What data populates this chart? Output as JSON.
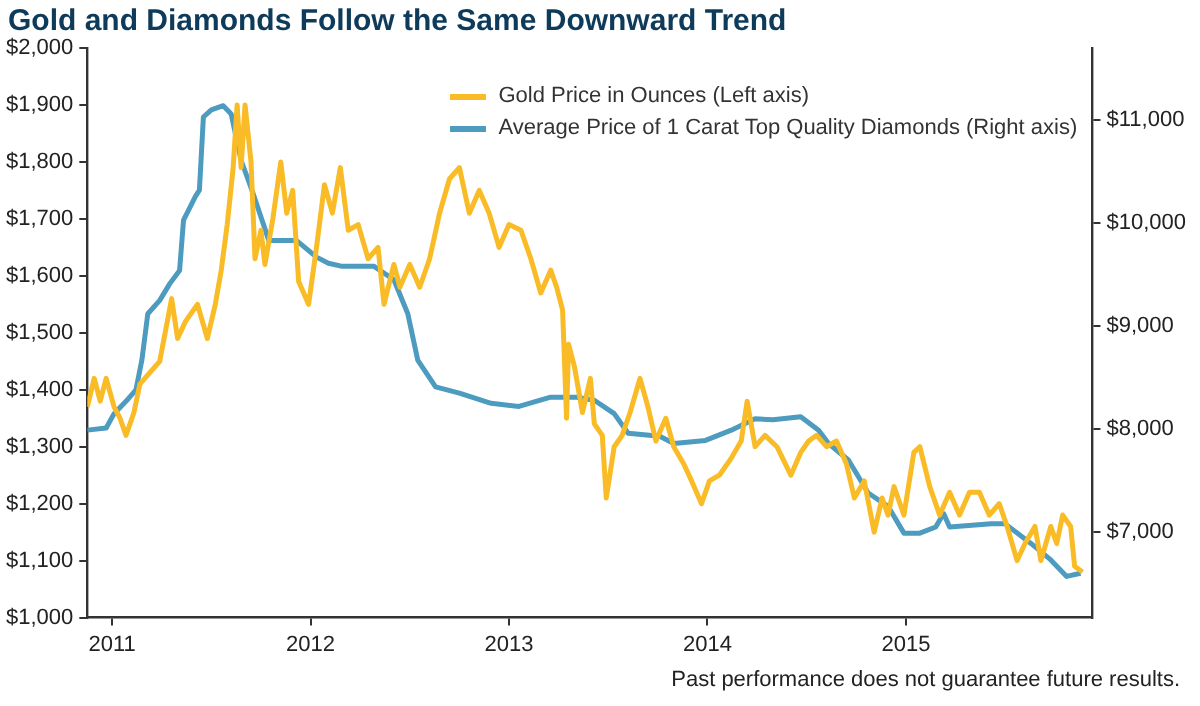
{
  "chart_data": {
    "type": "line",
    "title": "Gold and Diamonds Follow the Same Downward Trend",
    "legend": "top right",
    "annotations": [
      "Past performance does not guarantee future results."
    ],
    "xlim": [
      2010.875,
      2015.94
    ],
    "xticks": [
      2011,
      2012,
      2013,
      2014,
      2015
    ],
    "ylim": [
      1000,
      2000
    ],
    "yticks": [
      {
        "value": 1000,
        "label": "$1,000"
      },
      {
        "value": 1100,
        "label": "$1,100"
      },
      {
        "value": 1200,
        "label": "$1,200"
      },
      {
        "value": 1300,
        "label": "$1,300"
      },
      {
        "value": 1400,
        "label": "$1,400"
      },
      {
        "value": 1500,
        "label": "$1,500"
      },
      {
        "value": 1600,
        "label": "$1,600"
      },
      {
        "value": 1700,
        "label": "$1,700"
      },
      {
        "value": 1800,
        "label": "$1,800"
      },
      {
        "value": 1900,
        "label": "$1,900"
      },
      {
        "value": 2000,
        "label": "$2,000"
      }
    ],
    "y2lim": [
      6170,
      11700
    ],
    "y2ticks": [
      {
        "value": 7000,
        "label": "$7,000"
      },
      {
        "value": 8000,
        "label": "$8,000"
      },
      {
        "value": 9000,
        "label": "$9,000"
      },
      {
        "value": 10000,
        "label": "$10,000"
      },
      {
        "value": 11000,
        "label": "$11,000"
      }
    ],
    "series": [
      {
        "name": "Gold Price in Ounces (Left axis)",
        "color": "#f9bb26",
        "axis": "y",
        "x": [
          2010.875,
          2010.91,
          2010.94,
          2010.97,
          2011.01,
          2011.04,
          2011.07,
          2011.11,
          2011.14,
          2011.19,
          2011.24,
          2011.3,
          2011.33,
          2011.37,
          2011.43,
          2011.48,
          2011.52,
          2011.55,
          2011.58,
          2011.61,
          2011.63,
          2011.65,
          2011.67,
          2011.7,
          2011.72,
          2011.75,
          2011.77,
          2011.81,
          2011.85,
          2011.88,
          2011.91,
          2011.94,
          2011.99,
          2012.03,
          2012.07,
          2012.11,
          2012.15,
          2012.19,
          2012.24,
          2012.29,
          2012.34,
          2012.37,
          2012.42,
          2012.45,
          2012.5,
          2012.55,
          2012.6,
          2012.65,
          2012.7,
          2012.75,
          2012.8,
          2012.85,
          2012.9,
          2012.95,
          2013.0,
          2013.06,
          2013.11,
          2013.16,
          2013.21,
          2013.24,
          2013.27,
          2013.29,
          2013.3,
          2013.33,
          2013.37,
          2013.41,
          2013.43,
          2013.47,
          2013.49,
          2013.53,
          2013.57,
          2013.61,
          2013.66,
          2013.7,
          2013.74,
          2013.79,
          2013.83,
          2013.88,
          2013.92,
          2013.97,
          2014.01,
          2014.06,
          2014.12,
          2014.17,
          2014.2,
          2014.24,
          2014.29,
          2014.35,
          2014.42,
          2014.47,
          2014.51,
          2014.55,
          2014.6,
          2014.65,
          2014.7,
          2014.74,
          2014.79,
          2014.84,
          2014.88,
          2014.91,
          2014.94,
          2014.99,
          2015.04,
          2015.07,
          2015.12,
          2015.17,
          2015.22,
          2015.27,
          2015.32,
          2015.37,
          2015.42,
          2015.47,
          2015.51,
          2015.56,
          2015.6,
          2015.65,
          2015.68,
          2015.73,
          2015.76,
          2015.79,
          2015.83,
          2015.85,
          2015.89
        ],
        "values": [
          1370,
          1420,
          1380,
          1420,
          1370,
          1350,
          1320,
          1360,
          1410,
          1430,
          1450,
          1560,
          1490,
          1520,
          1550,
          1490,
          1550,
          1610,
          1690,
          1790,
          1900,
          1790,
          1900,
          1800,
          1630,
          1680,
          1620,
          1700,
          1800,
          1710,
          1750,
          1590,
          1550,
          1650,
          1760,
          1710,
          1790,
          1680,
          1690,
          1630,
          1650,
          1550,
          1620,
          1580,
          1620,
          1580,
          1630,
          1710,
          1770,
          1790,
          1710,
          1750,
          1710,
          1650,
          1690,
          1680,
          1630,
          1570,
          1610,
          1580,
          1540,
          1350,
          1480,
          1440,
          1360,
          1420,
          1340,
          1320,
          1210,
          1300,
          1320,
          1360,
          1420,
          1370,
          1310,
          1350,
          1300,
          1270,
          1240,
          1200,
          1240,
          1250,
          1280,
          1310,
          1380,
          1300,
          1320,
          1300,
          1250,
          1290,
          1310,
          1320,
          1300,
          1310,
          1270,
          1210,
          1240,
          1150,
          1210,
          1180,
          1230,
          1180,
          1290,
          1300,
          1230,
          1180,
          1220,
          1180,
          1220,
          1220,
          1180,
          1200,
          1160,
          1100,
          1130,
          1160,
          1100,
          1160,
          1130,
          1180,
          1160,
          1090,
          1080
        ]
      },
      {
        "name": "Average Price of 1 Carat Top Quality Diamonds (Right axis)",
        "color": "#4d9bbe",
        "axis": "y2",
        "x": [
          2010.875,
          2010.97,
          2011.01,
          2011.07,
          2011.12,
          2011.15,
          2011.18,
          2011.24,
          2011.29,
          2011.34,
          2011.36,
          2011.42,
          2011.44,
          2011.46,
          2011.5,
          2011.56,
          2011.6,
          2011.65,
          2011.71,
          2011.79,
          2011.93,
          2012.03,
          2012.09,
          2012.16,
          2012.32,
          2012.42,
          2012.49,
          2012.54,
          2012.63,
          2012.75,
          2012.91,
          2013.05,
          2013.21,
          2013.34,
          2013.43,
          2013.53,
          2013.6,
          2013.76,
          2013.83,
          2013.99,
          2014.12,
          2014.24,
          2014.33,
          2014.47,
          2014.56,
          2014.61,
          2014.71,
          2014.81,
          2014.91,
          2014.99,
          2015.07,
          2015.15,
          2015.19,
          2015.22,
          2015.43,
          2015.5,
          2015.63,
          2015.73,
          2015.81,
          2015.88
        ],
        "values": [
          7990,
          8010,
          8150,
          8270,
          8380,
          8670,
          9120,
          9250,
          9410,
          9540,
          10030,
          10260,
          10320,
          11030,
          11100,
          11140,
          11060,
          10610,
          10290,
          9830,
          9830,
          9670,
          9610,
          9580,
          9580,
          9450,
          9120,
          8670,
          8410,
          8350,
          8250,
          8220,
          8310,
          8310,
          8280,
          8150,
          7960,
          7930,
          7860,
          7890,
          7990,
          8100,
          8090,
          8120,
          7990,
          7860,
          7700,
          7380,
          7250,
          6990,
          6990,
          7050,
          7180,
          7050,
          7080,
          7080,
          6890,
          6730,
          6570,
          6600
        ]
      }
    ]
  }
}
